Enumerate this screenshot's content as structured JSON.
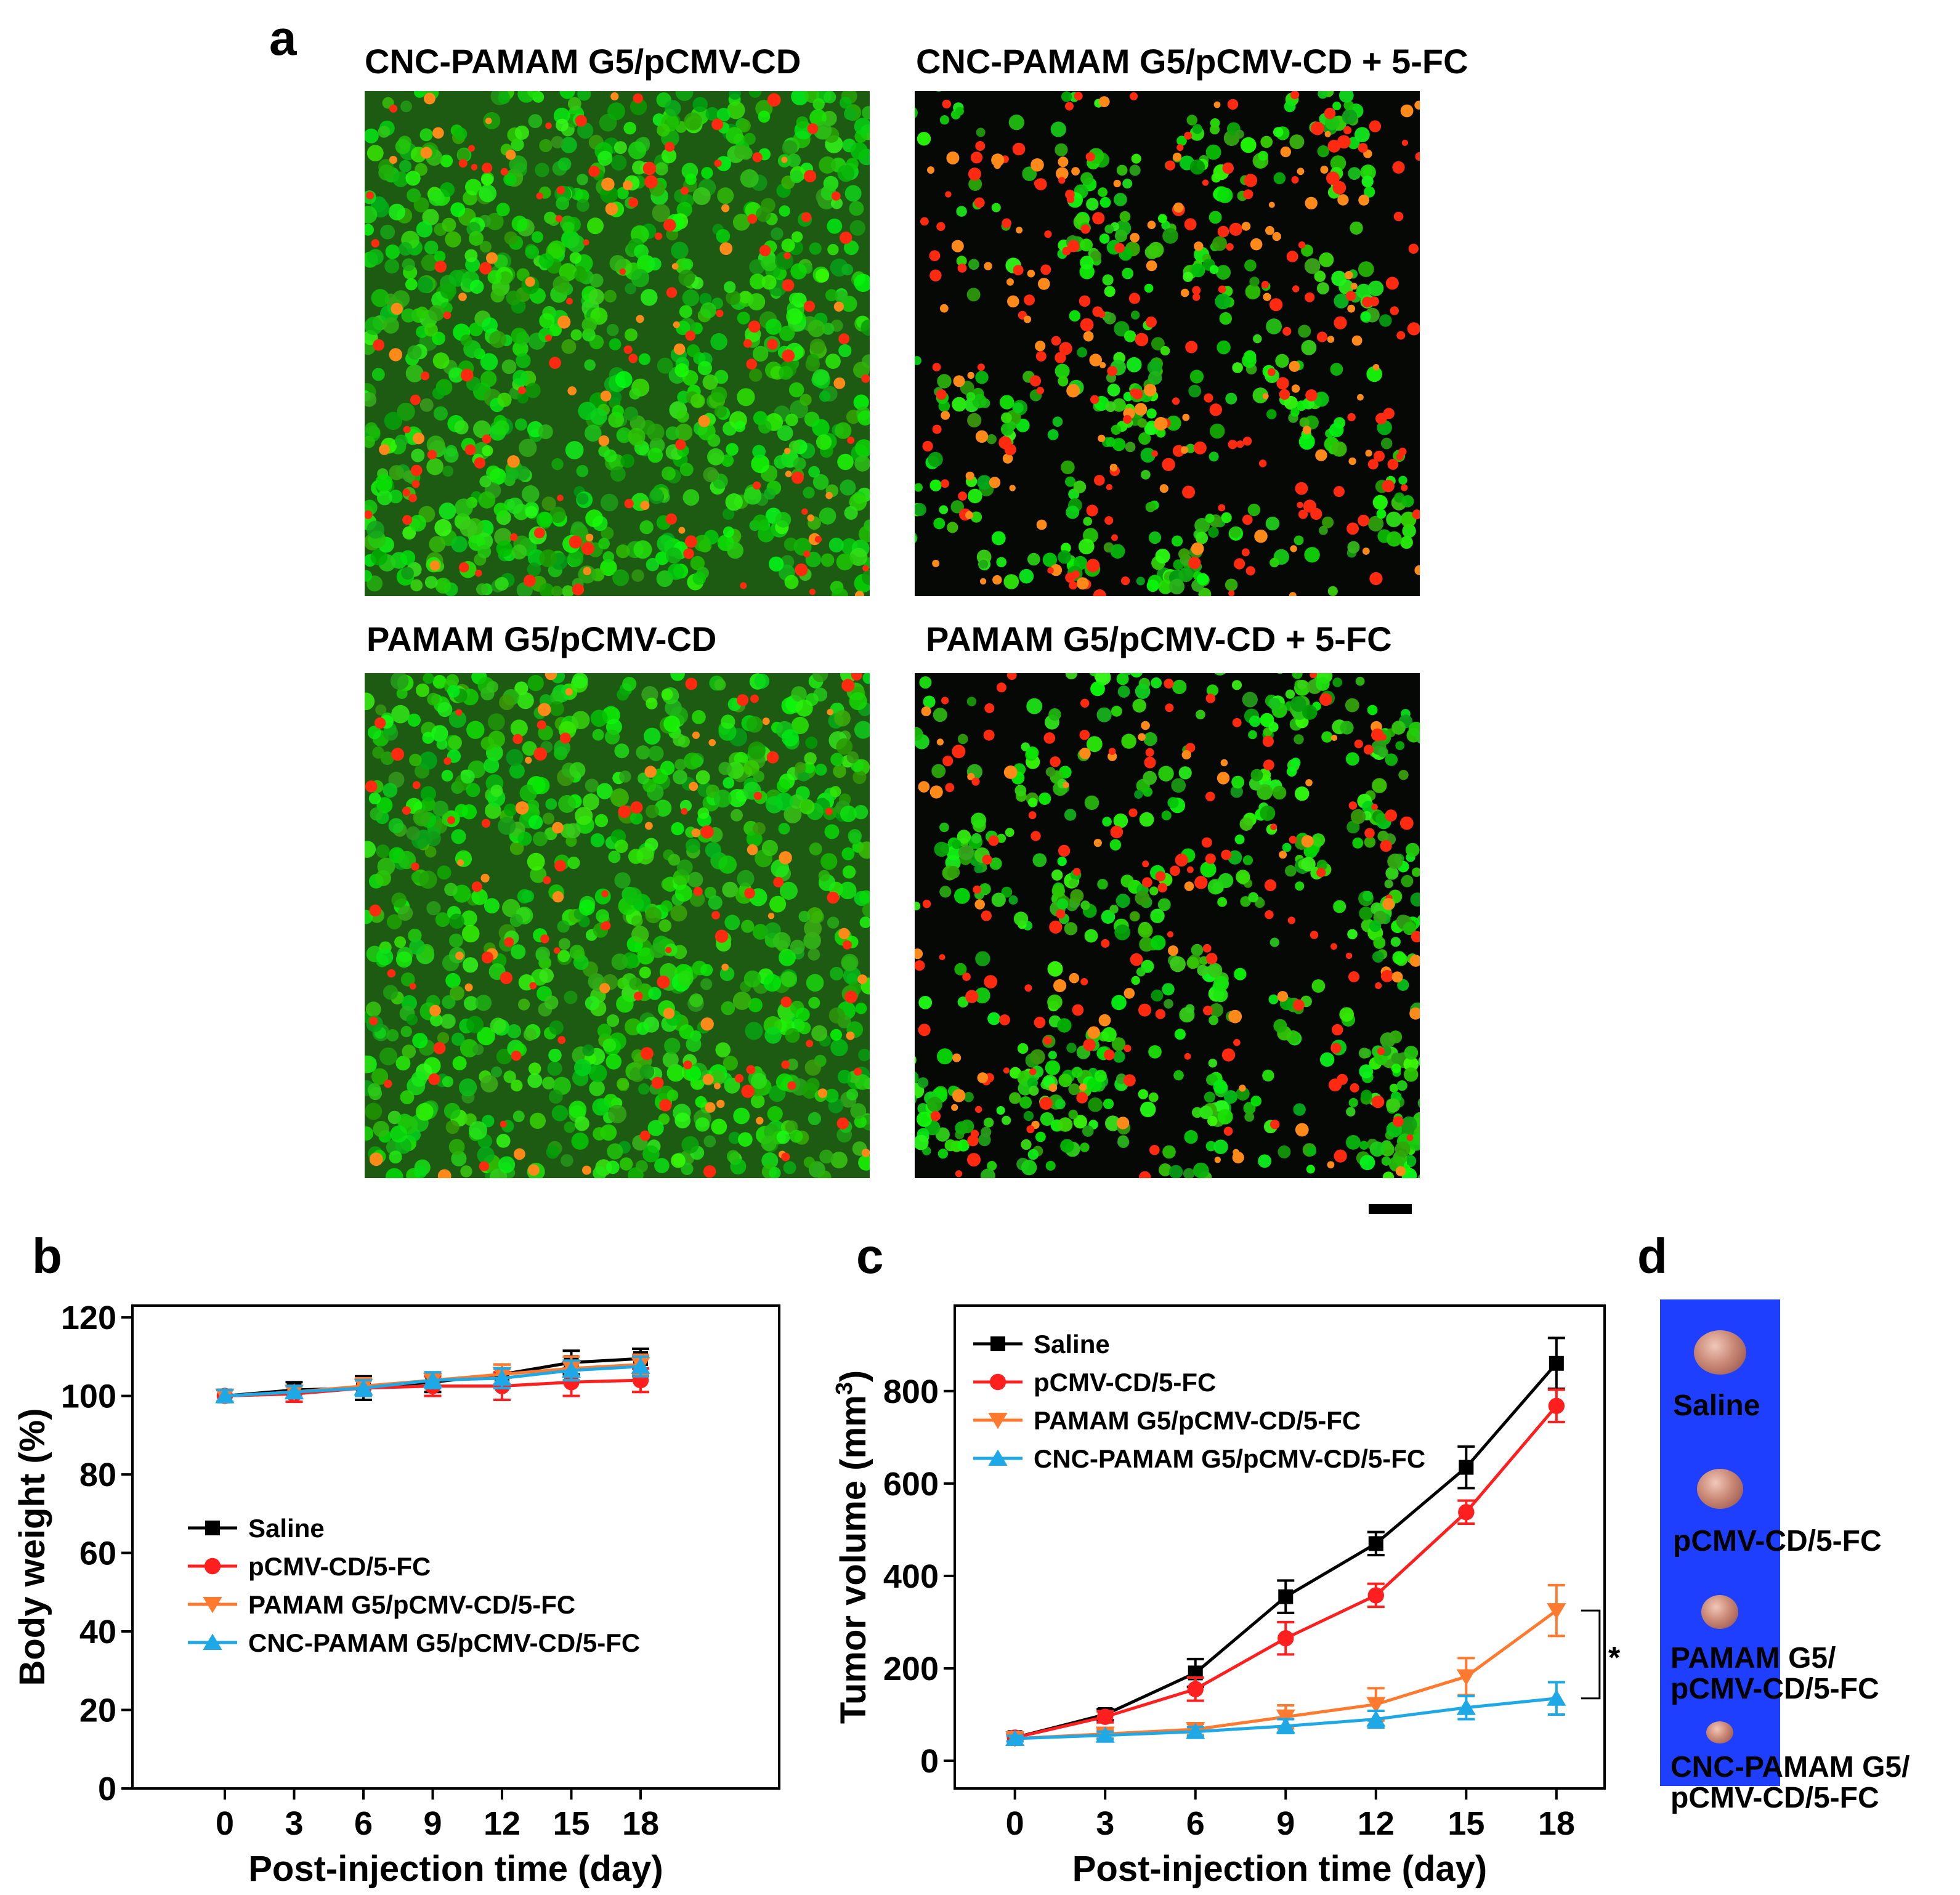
{
  "panel_letters": {
    "a": "a",
    "b": "b",
    "c": "c",
    "d": "d"
  },
  "micrographs": [
    {
      "title": "CNC-PAMAM G5/pCMV-CD",
      "green_cells": 900,
      "red_cells": 140,
      "density": "dense"
    },
    {
      "title": "CNC-PAMAM G5/pCMV-CD + 5-FC",
      "green_cells": 420,
      "red_cells": 260,
      "density": "sparse-clustered"
    },
    {
      "title": "PAMAM G5/pCMV-CD",
      "green_cells": 880,
      "red_cells": 120,
      "density": "dense"
    },
    {
      "title": "PAMAM G5/pCMV-CD + 5-FC",
      "green_cells": 620,
      "red_cells": 180,
      "density": "sparse"
    }
  ],
  "series_colors": {
    "saline": "#000000",
    "pcmv": "#ff1f1f",
    "pamam": "#ff7a2e",
    "cnc": "#1ea8e6"
  },
  "chart_data": [
    {
      "type": "line",
      "panel": "b",
      "xlabel": "Post-injection time (day)",
      "ylabel": "Body weight (%)",
      "x": [
        0,
        3,
        6,
        9,
        12,
        15,
        18
      ],
      "xticks": [
        0,
        3,
        6,
        9,
        12,
        15,
        18
      ],
      "yticks": [
        0,
        20,
        40,
        60,
        80,
        100,
        120
      ],
      "xlim": [
        -4,
        24
      ],
      "ylim": [
        0,
        123
      ],
      "legend_position": "center-left",
      "series": [
        {
          "name": "Saline",
          "key": "saline",
          "marker": "square",
          "values": [
            100,
            101.5,
            102,
            103.5,
            105.5,
            108.5,
            109.5
          ],
          "errors": [
            1.5,
            2,
            3,
            2.5,
            2.5,
            3,
            2.5
          ]
        },
        {
          "name": "pCMV-CD/5-FC",
          "key": "pcmv",
          "marker": "circle",
          "values": [
            100,
            100.5,
            102,
            102.5,
            102.5,
            103.5,
            104
          ],
          "errors": [
            1.5,
            2,
            2,
            2.5,
            3.5,
            3.5,
            3
          ]
        },
        {
          "name": "PAMAM G5/pCMV-CD/5-FC",
          "key": "pamam",
          "marker": "triangle-down",
          "values": [
            100,
            101,
            102.5,
            104,
            105.5,
            107,
            108
          ],
          "errors": [
            1.5,
            1.5,
            2,
            2,
            2.5,
            3,
            2.5
          ]
        },
        {
          "name": "CNC-PAMAM G5/pCMV-CD/5-FC",
          "key": "cnc",
          "marker": "triangle-up",
          "values": [
            100,
            101,
            102,
            104,
            104.5,
            106.5,
            107.5
          ],
          "errors": [
            1.5,
            1.5,
            2,
            2,
            2.5,
            2.5,
            2.5
          ]
        }
      ]
    },
    {
      "type": "line",
      "panel": "c",
      "xlabel": "Post-injection time (day)",
      "ylabel": "Tumor volume (mm",
      "ylabel_sup": "3",
      "ylabel_close": ")",
      "x": [
        0,
        3,
        6,
        9,
        12,
        15,
        18
      ],
      "xticks": [
        0,
        3,
        6,
        9,
        12,
        15,
        18
      ],
      "yticks": [
        0,
        200,
        400,
        600,
        800
      ],
      "xlim": [
        -2,
        19.6
      ],
      "ylim": [
        -60,
        985
      ],
      "legend_position": "top-left",
      "annotation": "*",
      "series": [
        {
          "name": "Saline",
          "key": "saline",
          "marker": "square",
          "values": [
            50,
            100,
            190,
            355,
            470,
            635,
            860
          ],
          "errors": [
            8,
            12,
            30,
            35,
            25,
            45,
            55
          ]
        },
        {
          "name": "pCMV-CD/5-FC",
          "key": "pcmv",
          "marker": "circle",
          "values": [
            50,
            95,
            155,
            265,
            358,
            538,
            768
          ],
          "errors": [
            8,
            12,
            25,
            35,
            25,
            25,
            35
          ]
        },
        {
          "name": "PAMAM G5/pCMV-CD/5-FC",
          "key": "pamam",
          "marker": "triangle-down",
          "values": [
            48,
            58,
            68,
            95,
            122,
            182,
            325
          ],
          "errors": [
            6,
            10,
            12,
            25,
            35,
            40,
            55
          ]
        },
        {
          "name": "CNC-PAMAM G5/pCMV-CD/5-FC",
          "key": "cnc",
          "marker": "triangle-up",
          "values": [
            48,
            55,
            63,
            75,
            90,
            115,
            135
          ],
          "errors": [
            6,
            8,
            10,
            15,
            18,
            25,
            35
          ]
        }
      ]
    }
  ],
  "tumor_photo": {
    "labels": [
      {
        "line1": "Saline",
        "line2": ""
      },
      {
        "line1": "pCMV-CD/5-FC",
        "line2": ""
      },
      {
        "line1": "PAMAM G5/",
        "line2": "pCMV-CD/5-FC"
      },
      {
        "line1": "CNC-PAMAM G5/",
        "line2": "pCMV-CD/5-FC"
      }
    ],
    "background_color": "#1f3fff"
  }
}
